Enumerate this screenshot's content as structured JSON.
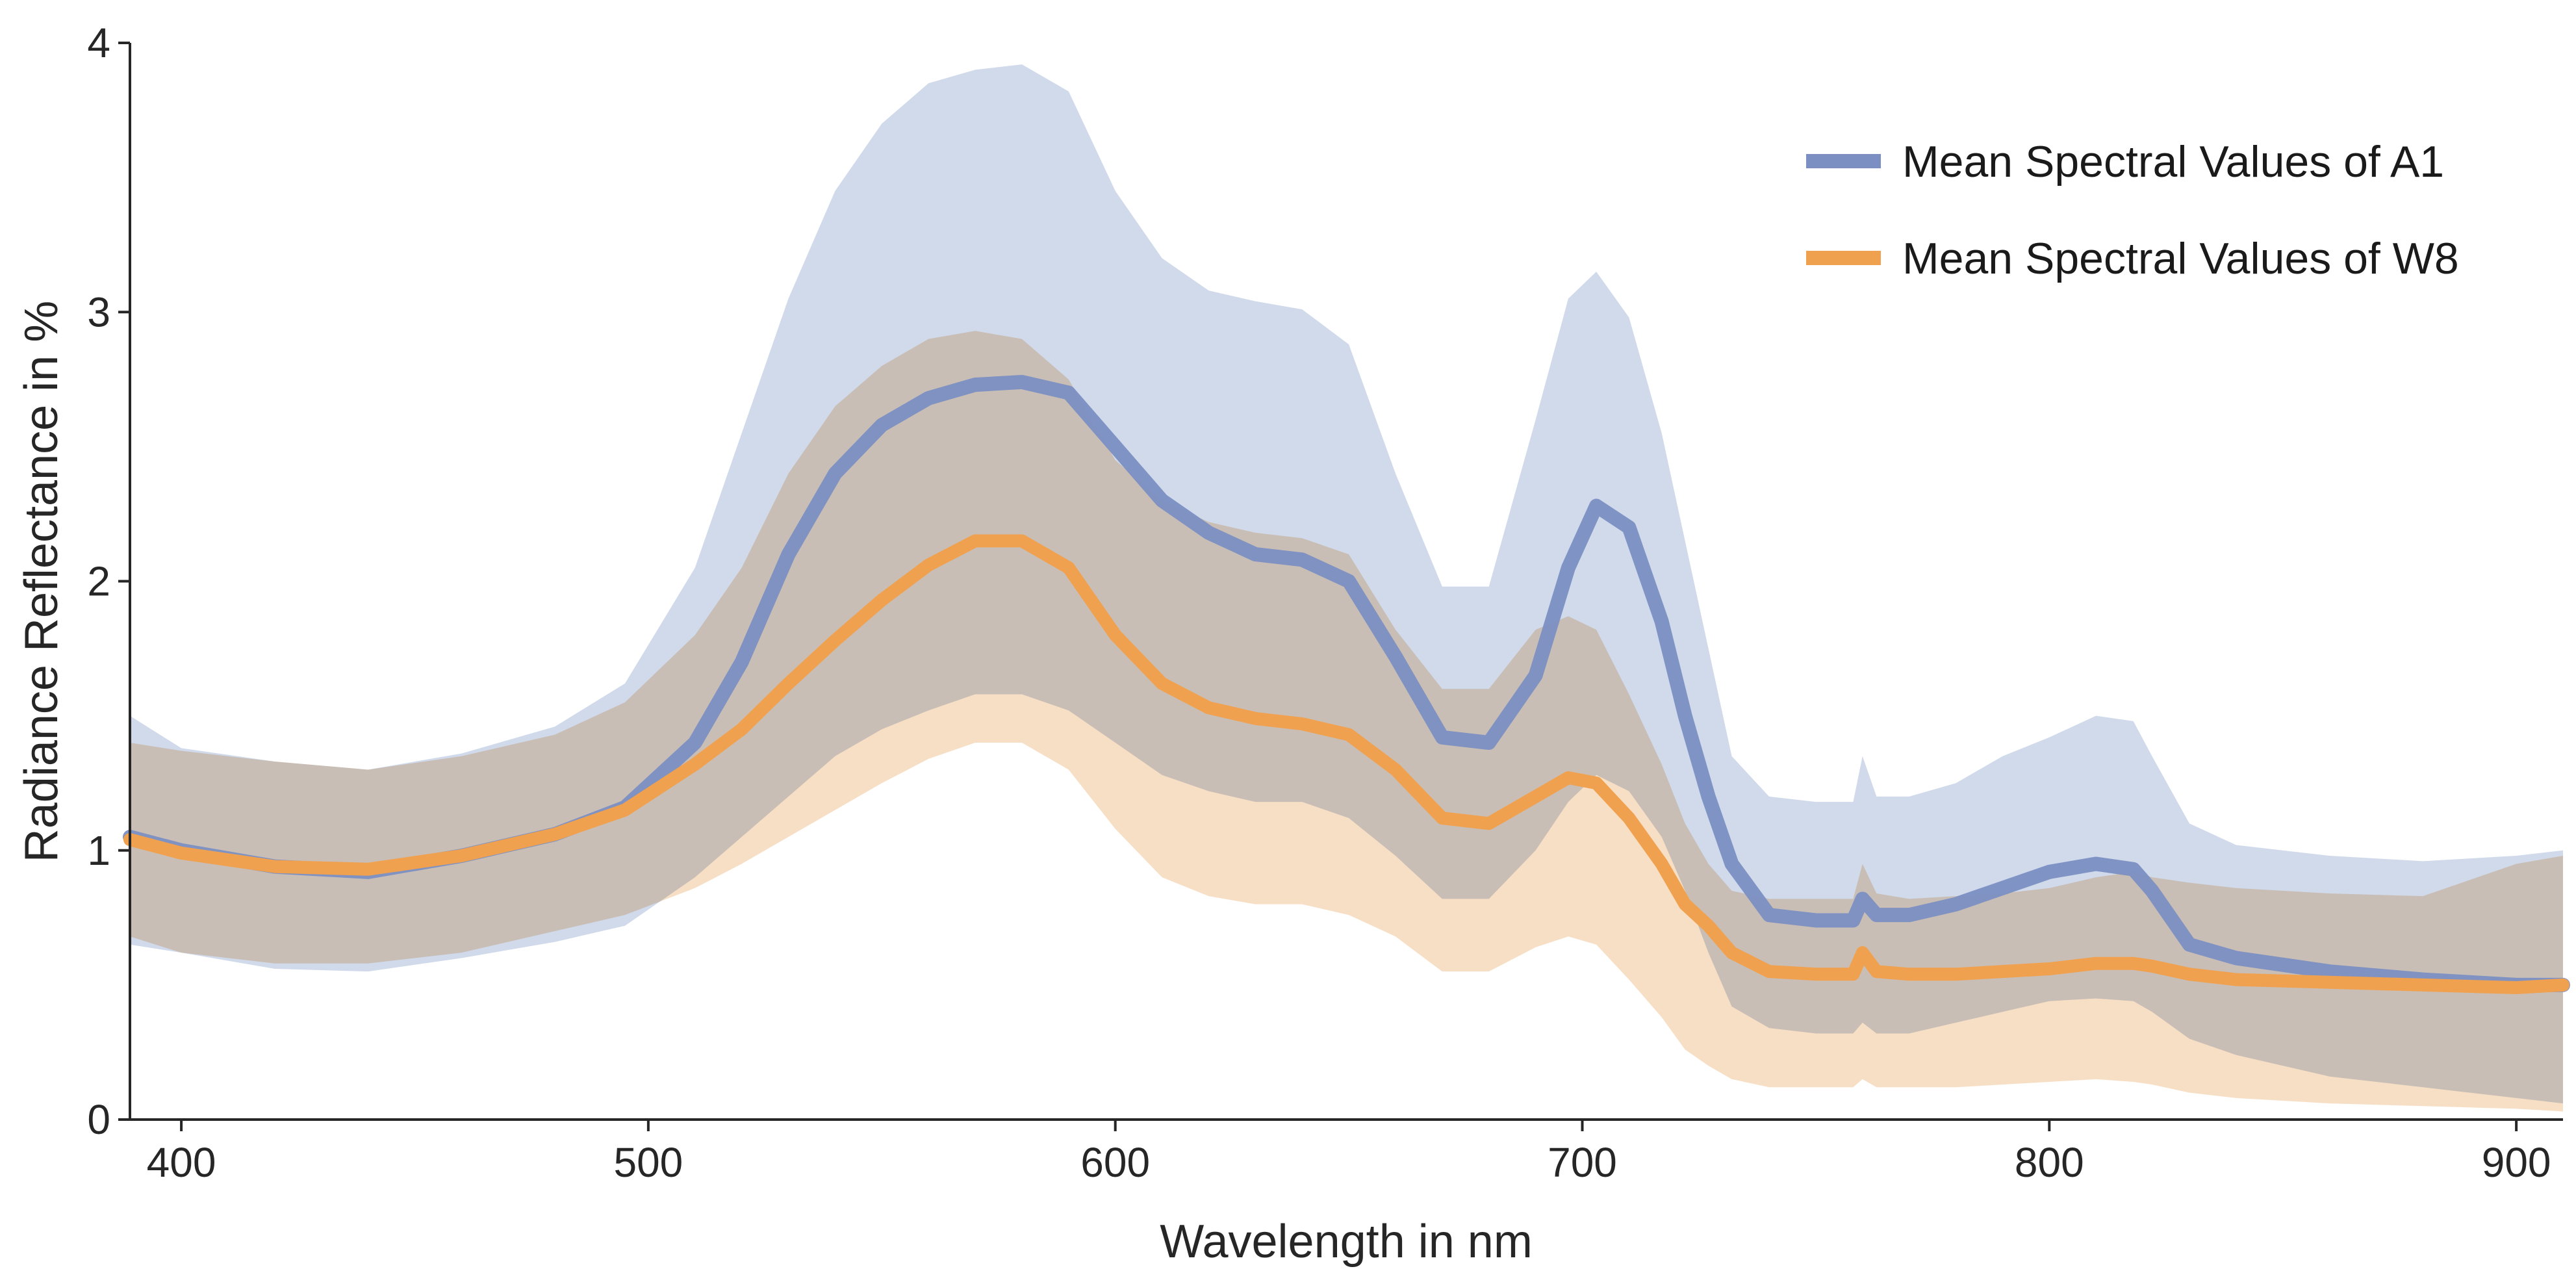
{
  "chart_data": {
    "type": "line",
    "title": "",
    "xlabel": "Wavelength in nm",
    "ylabel": "Radiance Reflectance in %",
    "xlim": [
      389,
      910
    ],
    "ylim": [
      0,
      4
    ],
    "xticks": [
      400,
      500,
      600,
      700,
      800,
      900
    ],
    "yticks": [
      0,
      1,
      2,
      3,
      4
    ],
    "grid": false,
    "legend_position": "top-right",
    "series": [
      {
        "name": "Mean Spectral Values of A1",
        "color": "#7b8fc3",
        "band_color": "#c8d3e8",
        "x": [
          389,
          400,
          420,
          440,
          460,
          480,
          495,
          510,
          520,
          530,
          540,
          550,
          560,
          570,
          580,
          590,
          600,
          610,
          620,
          630,
          640,
          650,
          660,
          670,
          680,
          690,
          697,
          703,
          710,
          717,
          722,
          727,
          732,
          740,
          750,
          758,
          760,
          763,
          770,
          780,
          790,
          800,
          810,
          818,
          822,
          830,
          840,
          860,
          880,
          900,
          910
        ],
        "values": [
          1.05,
          1.0,
          0.94,
          0.92,
          0.98,
          1.06,
          1.16,
          1.4,
          1.7,
          2.1,
          2.4,
          2.58,
          2.68,
          2.73,
          2.74,
          2.7,
          2.5,
          2.3,
          2.18,
          2.1,
          2.08,
          2.0,
          1.72,
          1.42,
          1.4,
          1.65,
          2.05,
          2.28,
          2.2,
          1.85,
          1.5,
          1.2,
          0.95,
          0.76,
          0.74,
          0.74,
          0.82,
          0.76,
          0.76,
          0.8,
          0.86,
          0.92,
          0.95,
          0.93,
          0.85,
          0.65,
          0.6,
          0.55,
          0.52,
          0.5,
          0.5
        ],
        "upper": [
          1.5,
          1.38,
          1.33,
          1.3,
          1.36,
          1.46,
          1.62,
          2.05,
          2.55,
          3.05,
          3.45,
          3.7,
          3.85,
          3.9,
          3.92,
          3.82,
          3.45,
          3.2,
          3.08,
          3.04,
          3.01,
          2.88,
          2.4,
          1.98,
          1.98,
          2.6,
          3.05,
          3.15,
          2.98,
          2.55,
          2.15,
          1.75,
          1.35,
          1.2,
          1.18,
          1.18,
          1.35,
          1.2,
          1.2,
          1.25,
          1.35,
          1.42,
          1.5,
          1.48,
          1.35,
          1.1,
          1.02,
          0.98,
          0.96,
          0.98,
          1.0
        ],
        "lower": [
          0.65,
          0.62,
          0.56,
          0.55,
          0.6,
          0.66,
          0.72,
          0.9,
          1.05,
          1.2,
          1.35,
          1.45,
          1.52,
          1.58,
          1.58,
          1.52,
          1.4,
          1.28,
          1.22,
          1.18,
          1.18,
          1.12,
          0.98,
          0.82,
          0.82,
          1.0,
          1.18,
          1.28,
          1.22,
          1.05,
          0.85,
          0.62,
          0.42,
          0.34,
          0.32,
          0.32,
          0.36,
          0.32,
          0.32,
          0.36,
          0.4,
          0.44,
          0.45,
          0.44,
          0.4,
          0.3,
          0.24,
          0.16,
          0.12,
          0.08,
          0.06
        ]
      },
      {
        "name": "Mean Spectral Values of W8",
        "color": "#f0a14f",
        "band_color": "#f6dcbf",
        "x": [
          389,
          400,
          420,
          440,
          460,
          480,
          495,
          510,
          520,
          530,
          540,
          550,
          560,
          570,
          580,
          590,
          600,
          610,
          620,
          630,
          640,
          650,
          660,
          670,
          680,
          690,
          697,
          703,
          710,
          717,
          722,
          727,
          732,
          740,
          750,
          758,
          760,
          763,
          770,
          780,
          790,
          800,
          810,
          818,
          822,
          830,
          840,
          860,
          880,
          900,
          910
        ],
        "values": [
          1.04,
          0.99,
          0.94,
          0.93,
          0.98,
          1.06,
          1.15,
          1.32,
          1.45,
          1.62,
          1.78,
          1.93,
          2.06,
          2.15,
          2.15,
          2.05,
          1.8,
          1.62,
          1.53,
          1.49,
          1.47,
          1.43,
          1.3,
          1.12,
          1.1,
          1.2,
          1.27,
          1.25,
          1.12,
          0.95,
          0.8,
          0.72,
          0.62,
          0.55,
          0.54,
          0.54,
          0.62,
          0.55,
          0.54,
          0.54,
          0.55,
          0.56,
          0.58,
          0.58,
          0.57,
          0.54,
          0.52,
          0.51,
          0.5,
          0.49,
          0.5
        ],
        "upper": [
          1.4,
          1.37,
          1.33,
          1.3,
          1.35,
          1.43,
          1.55,
          1.8,
          2.05,
          2.4,
          2.65,
          2.8,
          2.9,
          2.93,
          2.9,
          2.75,
          2.45,
          2.3,
          2.22,
          2.18,
          2.16,
          2.1,
          1.82,
          1.6,
          1.6,
          1.82,
          1.87,
          1.82,
          1.58,
          1.32,
          1.1,
          0.95,
          0.85,
          0.82,
          0.82,
          0.82,
          0.95,
          0.84,
          0.82,
          0.83,
          0.84,
          0.86,
          0.9,
          0.92,
          0.9,
          0.88,
          0.86,
          0.84,
          0.83,
          0.95,
          0.98
        ],
        "lower": [
          0.68,
          0.62,
          0.58,
          0.58,
          0.62,
          0.7,
          0.76,
          0.86,
          0.95,
          1.05,
          1.15,
          1.25,
          1.34,
          1.4,
          1.4,
          1.3,
          1.08,
          0.9,
          0.83,
          0.8,
          0.8,
          0.76,
          0.68,
          0.55,
          0.55,
          0.64,
          0.68,
          0.65,
          0.52,
          0.38,
          0.26,
          0.2,
          0.15,
          0.12,
          0.12,
          0.12,
          0.15,
          0.12,
          0.12,
          0.12,
          0.13,
          0.14,
          0.15,
          0.14,
          0.13,
          0.1,
          0.08,
          0.06,
          0.05,
          0.04,
          0.03
        ]
      }
    ]
  }
}
